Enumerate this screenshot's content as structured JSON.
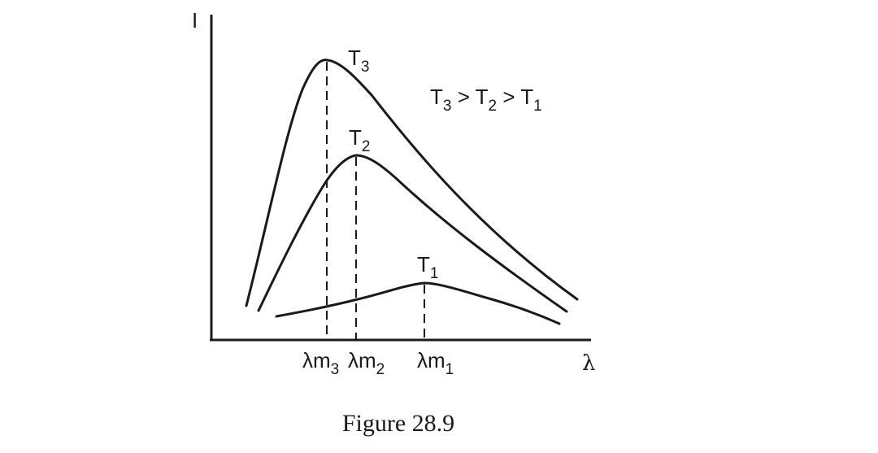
{
  "axes": {
    "y_label": "I",
    "x_label": "λ"
  },
  "curves": [
    {
      "name": "T",
      "sub": "3"
    },
    {
      "name": "T",
      "sub": "2"
    },
    {
      "name": "T",
      "sub": "1"
    }
  ],
  "relation": {
    "parts": [
      "T",
      "3",
      " > ",
      "T",
      "2",
      " > ",
      "T",
      "1"
    ]
  },
  "peaks": [
    {
      "prefix": "λm",
      "sub": "3"
    },
    {
      "prefix": "λm",
      "sub": "2"
    },
    {
      "prefix": "λm",
      "sub": "1"
    }
  ],
  "caption": "Figure 28.9"
}
